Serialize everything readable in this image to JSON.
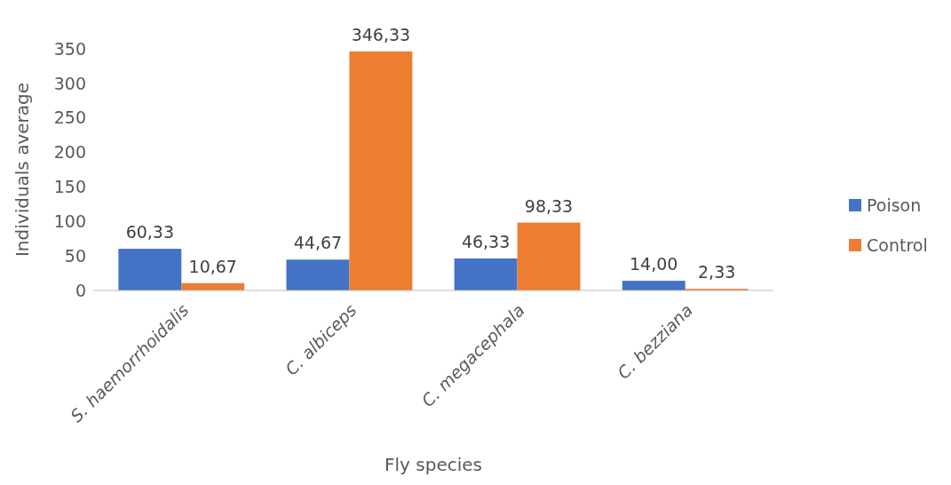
{
  "chart_data": {
    "type": "bar",
    "xlabel": "Fly species",
    "ylabel": "Individuals average",
    "categories": [
      "S. haemorrhoidalis",
      "C. albiceps",
      "C. megacephala",
      "C. bezziana"
    ],
    "series": [
      {
        "name": "Poison",
        "color": "#4472c4",
        "values": [
          60.33,
          44.67,
          46.33,
          14.0
        ],
        "value_labels": [
          "60,33",
          "44,67",
          "46,33",
          "14,00"
        ]
      },
      {
        "name": "Control",
        "color": "#ed7d31",
        "values": [
          10.67,
          346.33,
          98.33,
          2.33
        ],
        "value_labels": [
          "10,67",
          "346,33",
          "98,33",
          "2,33"
        ]
      }
    ],
    "ylim": [
      0,
      350
    ],
    "yticks": [
      0,
      50,
      100,
      150,
      200,
      250,
      300,
      350
    ],
    "grid": false,
    "legend": "right"
  }
}
